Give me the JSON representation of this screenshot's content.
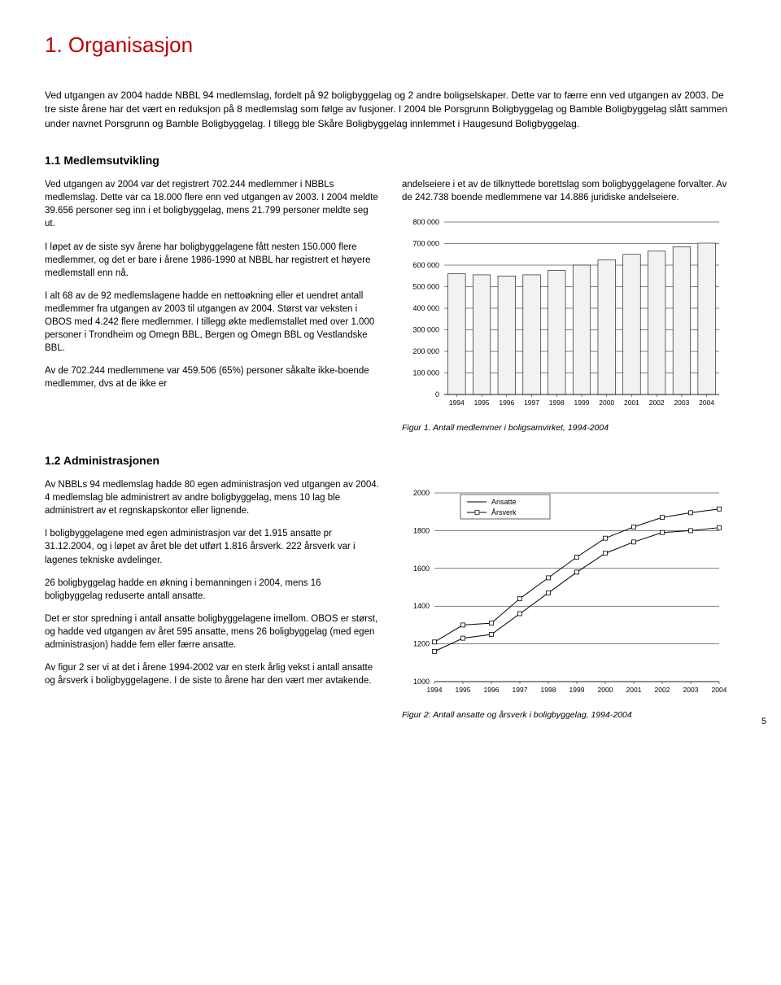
{
  "title": "1. Organisasjon",
  "intro": "Ved utgangen av 2004 hadde NBBL 94 medlemslag, fordelt på 92 boligbyggelag og 2 andre boligselskaper. Dette var to færre enn ved utgangen av 2003. De tre siste årene har det vært en reduksjon på 8 medlemslag som følge av fusjoner. I 2004 ble Porsgrunn Boligbyggelag og Bamble Boligbyggelag slått sammen under navnet Porsgrunn og Bamble Boligbyggelag. I tillegg ble Skåre Boligbyggelag innlemmet i Haugesund Boligbyggelag.",
  "section11_title": "1.1 Medlemsutvikling",
  "s11_p1": "Ved utgangen av 2004 var det registrert 702.244 medlemmer i NBBLs medlemslag. Dette var ca 18.000 flere enn ved utgangen av 2003. I 2004 meldte 39.656 personer seg inn i et boligbyggelag, mens 21.799 personer meldte seg ut.",
  "s11_p2": "I løpet av de siste syv årene har boligbyggelagene fått nesten 150.000 flere medlemmer, og det er bare i årene 1986-1990 at NBBL har registrert et høyere medlemstall enn nå.",
  "s11_p3": "I alt 68 av de 92 medlemslagene hadde en nettoøkning eller et uendret antall medlemmer fra utgangen av 2003 til utgangen av 2004. Størst var veksten i OBOS med 4.242 flere medlemmer. I tillegg økte medlemstallet med over 1.000 personer i Trondheim og Omegn BBL, Bergen og Omegn BBL og Vestlandske BBL.",
  "s11_p4": "Av de 702.244 medlemmene var 459.506 (65%) personer såkalte ikke-boende medlemmer, dvs at de ikke er",
  "s11_right_p1": "andelseiere i et av de tilknyttede borettslag som boligbyggelagene forvalter. Av de 242.738 boende medlemmene var 14.886 juridiske andelseiere.",
  "chart1": {
    "type": "bar",
    "years": [
      "1994",
      "1995",
      "1996",
      "1997",
      "1998",
      "1999",
      "2000",
      "2001",
      "2002",
      "2003",
      "2004"
    ],
    "values": [
      560000,
      555000,
      550000,
      555000,
      575000,
      600000,
      625000,
      650000,
      665000,
      685000,
      702000
    ],
    "ymin": 0,
    "ymax": 800000,
    "ystep": 100000,
    "ylabels": [
      "0",
      "100 000",
      "200 000",
      "300 000",
      "400 000",
      "500 000",
      "600 000",
      "700 000",
      "800 000"
    ],
    "bar_fill": "#f2f2f2",
    "bar_stroke": "#000000",
    "grid_color": "#000000",
    "caption": "Figur 1. Antall medlemmer i boligsamvirket, 1994-2004"
  },
  "section12_title": "1.2 Administrasjonen",
  "s12_p1": "Av NBBLs 94 medlemslag hadde 80 egen administrasjon ved utgangen av 2004. 4 medlemslag ble administrert av andre boligbyggelag, mens 10 lag ble administrert av et regnskapskontor eller lignende.",
  "s12_p2": "I boligbyggelagene med egen administrasjon var det 1.915 ansatte pr 31.12.2004, og i løpet av året ble det utført 1.816 årsverk. 222 årsverk var i lagenes tekniske avdelinger.",
  "s12_p3": "26 boligbyggelag hadde en økning i bemanningen i 2004, mens 16 boligbyggelag reduserte antall ansatte.",
  "s12_p4": "Det er stor spredning i antall ansatte boligbyggelagene imellom. OBOS er størst, og hadde ved utgangen av året 595 ansatte, mens 26 boligbyggelag (med egen administrasjon) hadde fem eller færre ansatte.",
  "s12_p5": "Av figur 2 ser vi at det i årene 1994-2002 var en sterk årlig vekst i antall ansatte og årsverk i boligbyggelagene. I de siste to årene har den vært mer avtakende.",
  "chart2": {
    "type": "line",
    "years": [
      "1994",
      "1995",
      "1996",
      "1997",
      "1998",
      "1999",
      "2000",
      "2001",
      "2002",
      "2003",
      "2004"
    ],
    "ansatte": [
      1210,
      1300,
      1310,
      1440,
      1550,
      1660,
      1760,
      1820,
      1870,
      1895,
      1915
    ],
    "aarsverk": [
      1160,
      1230,
      1250,
      1360,
      1470,
      1580,
      1680,
      1740,
      1790,
      1800,
      1816
    ],
    "ymin": 1000,
    "ymax": 2000,
    "ystep": 200,
    "ylabels": [
      "1000",
      "1200",
      "1400",
      "1600",
      "1800",
      "2000"
    ],
    "legend_ansatte": "Ansatte",
    "legend_aarsverk": "Årsverk",
    "line_color": "#000000",
    "marker_fill": "#ffffff",
    "marker_stroke": "#000000",
    "caption": "Figur 2: Antall ansatte og årsverk i boligbyggelag, 1994-2004"
  },
  "page_number": "5"
}
